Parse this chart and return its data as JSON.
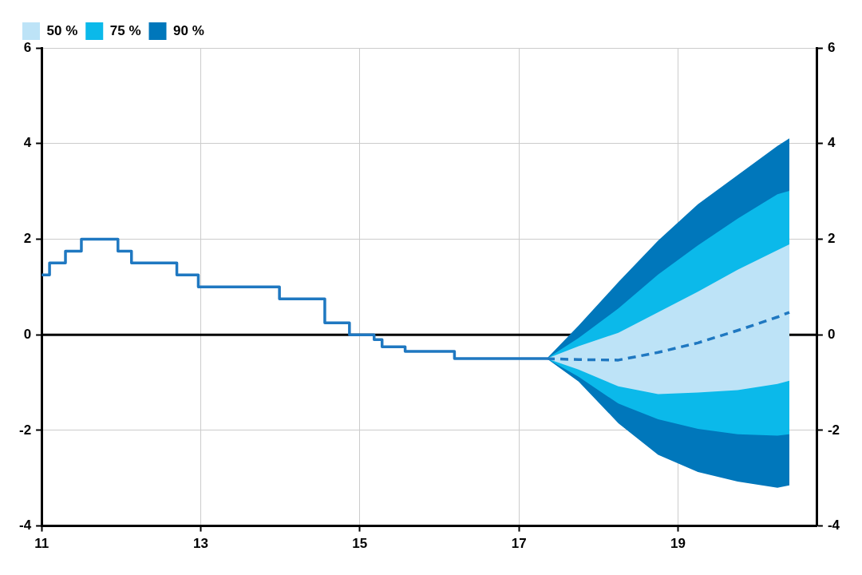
{
  "chart_data": {
    "type": "line",
    "xlim": [
      11,
      20.75
    ],
    "xticks": [
      11,
      13,
      15,
      17,
      19
    ],
    "ylim": [
      -4,
      6
    ],
    "yticks": [
      -4,
      -2,
      0,
      2,
      4,
      6
    ],
    "y2lim": [
      -4,
      6
    ],
    "y2ticks": [
      -4,
      -2,
      0,
      2,
      4,
      6
    ],
    "grid": true,
    "legend": "top left",
    "ref_lines": [
      {
        "axis": "y",
        "value": 0,
        "color": "#000000"
      }
    ],
    "series": [
      {
        "type": "step",
        "color": "#1f78c1",
        "x": [
          11,
          11.1,
          11.3,
          11.5,
          11.96,
          12.13,
          12.7,
          12.97,
          13.99,
          14.56,
          14.87,
          15.18,
          15.28,
          15.57,
          16.19,
          17.35
        ],
        "values": [
          1.25,
          1.5,
          1.75,
          2.0,
          1.75,
          1.5,
          1.25,
          1.0,
          0.75,
          0.25,
          0.0,
          -0.1,
          -0.25,
          -0.35,
          -0.5,
          -0.5
        ]
      },
      {
        "type": "line",
        "color": "#1f78c1",
        "line_style": "dashed",
        "x": [
          17.35,
          17.75,
          18.25,
          18.75,
          19.25,
          19.75,
          20.25,
          20.4
        ],
        "values": [
          -0.5,
          -0.52,
          -0.53,
          -0.37,
          -0.17,
          0.09,
          0.37,
          0.47
        ]
      },
      {
        "type": "area",
        "name": "50 %",
        "color": "#bde3f7",
        "x": [
          17.35,
          17.75,
          18.25,
          18.75,
          19.25,
          19.75,
          20.25,
          20.4
        ],
        "values": [
          null,
          null,
          null,
          null,
          null,
          null,
          null,
          null
        ],
        "lower": [
          -0.5,
          -0.73,
          -1.08,
          -1.24,
          -1.21,
          -1.16,
          -1.03,
          -0.96
        ],
        "upper": [
          -0.5,
          -0.24,
          0.04,
          0.47,
          0.9,
          1.36,
          1.77,
          1.89
        ]
      },
      {
        "type": "area",
        "name": "75 %",
        "color": "#0bb9ea",
        "x": [
          17.35,
          17.75,
          18.25,
          18.75,
          19.25,
          19.75,
          20.25,
          20.4
        ],
        "values": [
          null,
          null,
          null,
          null,
          null,
          null,
          null,
          null
        ],
        "lower": [
          -0.5,
          -0.88,
          -1.44,
          -1.77,
          -1.97,
          -2.08,
          -2.11,
          -2.08
        ],
        "upper": [
          -0.5,
          -0.07,
          0.55,
          1.26,
          1.87,
          2.43,
          2.94,
          3.01
        ]
      },
      {
        "type": "area",
        "name": "90 %",
        "color": "#0077bb",
        "x": [
          17.35,
          17.75,
          18.25,
          18.75,
          19.25,
          19.75,
          20.25,
          20.4
        ],
        "values": [
          null,
          null,
          null,
          null,
          null,
          null,
          null,
          null
        ],
        "lower": [
          -0.5,
          -0.98,
          -1.85,
          -2.51,
          -2.87,
          -3.07,
          -3.2,
          -3.15
        ],
        "upper": [
          -0.5,
          0.19,
          1.1,
          1.97,
          2.73,
          3.34,
          3.95,
          4.11
        ]
      }
    ]
  }
}
